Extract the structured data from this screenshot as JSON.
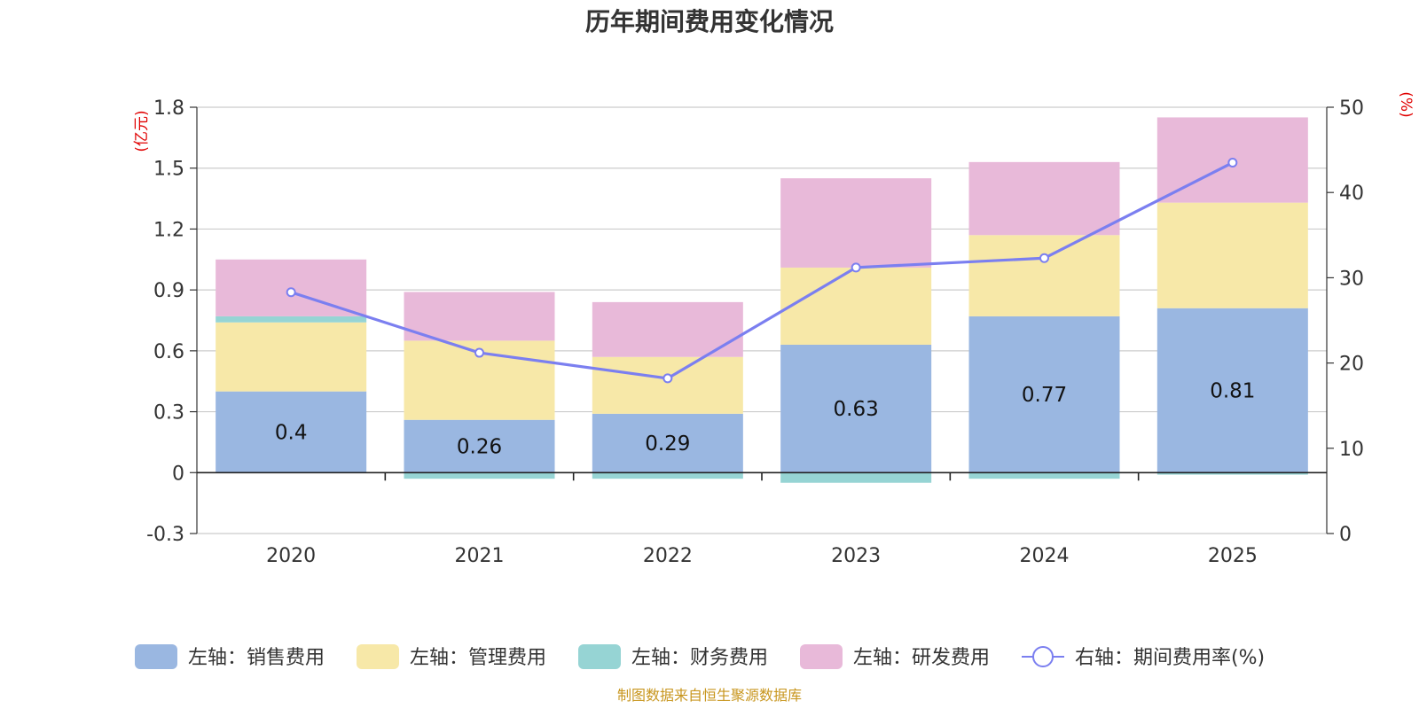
{
  "chart_data": {
    "type": "bar",
    "stacked": true,
    "title": "历年期间费用变化情况",
    "categories": [
      "2020",
      "2021",
      "2022",
      "2023",
      "2024",
      "2025"
    ],
    "left_axis": {
      "unit": "(亿元)",
      "ylim": [
        -0.3,
        1.8
      ],
      "ticks": [
        -0.3,
        0,
        0.3,
        0.6,
        0.9,
        1.2,
        1.5,
        1.8
      ],
      "tick_labels": [
        "-0.3",
        "0",
        "0.3",
        "0.6",
        "0.9",
        "1.2",
        "1.5",
        "1.8"
      ]
    },
    "right_axis": {
      "unit": "(%)",
      "ylim": [
        0,
        50
      ],
      "ticks": [
        0,
        10,
        20,
        30,
        40,
        50
      ],
      "tick_labels": [
        "0",
        "10",
        "20",
        "30",
        "40",
        "50"
      ]
    },
    "series": [
      {
        "name": "左轴：销售费用",
        "axis": "left",
        "type": "bar",
        "color": "#9ab7e1",
        "values": [
          0.4,
          0.26,
          0.29,
          0.63,
          0.77,
          0.81
        ],
        "data_labels": [
          "0.4",
          "0.26",
          "0.29",
          "0.63",
          "0.77",
          "0.81"
        ]
      },
      {
        "name": "左轴：管理费用",
        "axis": "left",
        "type": "bar",
        "color": "#f7e8a8",
        "values": [
          0.34,
          0.39,
          0.28,
          0.38,
          0.4,
          0.52
        ]
      },
      {
        "name": "左轴：财务费用",
        "axis": "left",
        "type": "bar",
        "color": "#96d4d4",
        "values": [
          0.03,
          -0.03,
          -0.03,
          -0.05,
          -0.03,
          -0.01
        ]
      },
      {
        "name": "左轴：研发费用",
        "axis": "left",
        "type": "bar",
        "color": "#e8b9d9",
        "values": [
          0.28,
          0.24,
          0.27,
          0.44,
          0.36,
          0.42
        ]
      },
      {
        "name": "右轴：期间费用率(%)",
        "axis": "right",
        "type": "line",
        "color": "#7b7ff0",
        "values": [
          28.3,
          21.2,
          18.2,
          31.2,
          32.3,
          43.5
        ]
      }
    ],
    "source": "制图数据来自恒生聚源数据库"
  }
}
